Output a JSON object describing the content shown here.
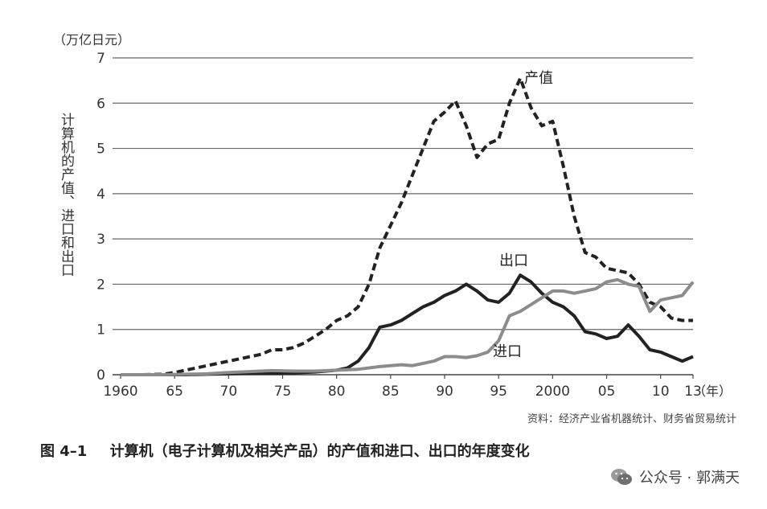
{
  "chart_data": {
    "type": "line",
    "unit_label": "（万亿日元）",
    "ylabel": "计算机的产值、进口和出口",
    "ylim": [
      0,
      7
    ],
    "y_ticks": [
      "0",
      "1",
      "2",
      "3",
      "4",
      "5",
      "6",
      "7"
    ],
    "xlim": [
      1960,
      2013
    ],
    "x_ticks": [
      {
        "year": 1960,
        "label": "1960"
      },
      {
        "year": 1965,
        "label": "65"
      },
      {
        "year": 1970,
        "label": "70"
      },
      {
        "year": 1975,
        "label": "75"
      },
      {
        "year": 1980,
        "label": "80"
      },
      {
        "year": 1985,
        "label": "85"
      },
      {
        "year": 1990,
        "label": "90"
      },
      {
        "year": 1995,
        "label": "95"
      },
      {
        "year": 2000,
        "label": "2000"
      },
      {
        "year": 2005,
        "label": "05"
      },
      {
        "year": 2010,
        "label": "10"
      },
      {
        "year": 2013,
        "label": "13"
      }
    ],
    "x_unit": "（年）",
    "grid": true,
    "series": [
      {
        "name": "产值",
        "style": "dashed",
        "color": "#222222",
        "points": [
          [
            1960,
            0
          ],
          [
            1962,
            0
          ],
          [
            1964,
            0.01
          ],
          [
            1965,
            0.05
          ],
          [
            1966,
            0.1
          ],
          [
            1967,
            0.15
          ],
          [
            1968,
            0.2
          ],
          [
            1969,
            0.25
          ],
          [
            1970,
            0.3
          ],
          [
            1971,
            0.35
          ],
          [
            1972,
            0.4
          ],
          [
            1973,
            0.45
          ],
          [
            1974,
            0.55
          ],
          [
            1975,
            0.55
          ],
          [
            1976,
            0.6
          ],
          [
            1977,
            0.7
          ],
          [
            1978,
            0.85
          ],
          [
            1979,
            1.0
          ],
          [
            1980,
            1.2
          ],
          [
            1981,
            1.3
          ],
          [
            1982,
            1.5
          ],
          [
            1983,
            2.0
          ],
          [
            1984,
            2.8
          ],
          [
            1985,
            3.3
          ],
          [
            1986,
            3.8
          ],
          [
            1987,
            4.4
          ],
          [
            1988,
            5.0
          ],
          [
            1989,
            5.6
          ],
          [
            1990,
            5.8
          ],
          [
            1991,
            6.05
          ],
          [
            1992,
            5.5
          ],
          [
            1993,
            4.8
          ],
          [
            1994,
            5.1
          ],
          [
            1995,
            5.2
          ],
          [
            1996,
            6.0
          ],
          [
            1997,
            6.55
          ],
          [
            1998,
            5.9
          ],
          [
            1999,
            5.5
          ],
          [
            2000,
            5.6
          ],
          [
            2001,
            4.6
          ],
          [
            2002,
            3.5
          ],
          [
            2003,
            2.7
          ],
          [
            2004,
            2.6
          ],
          [
            2005,
            2.35
          ],
          [
            2006,
            2.3
          ],
          [
            2007,
            2.25
          ],
          [
            2008,
            2.0
          ],
          [
            2009,
            1.6
          ],
          [
            2010,
            1.5
          ],
          [
            2011,
            1.25
          ],
          [
            2012,
            1.2
          ],
          [
            2013,
            1.2
          ]
        ]
      },
      {
        "name": "出口",
        "style": "solid",
        "color": "#222222",
        "points": [
          [
            1960,
            0
          ],
          [
            1962,
            0
          ],
          [
            1964,
            0
          ],
          [
            1966,
            0
          ],
          [
            1968,
            0.01
          ],
          [
            1970,
            0.02
          ],
          [
            1972,
            0.03
          ],
          [
            1974,
            0.03
          ],
          [
            1976,
            0.04
          ],
          [
            1978,
            0.06
          ],
          [
            1980,
            0.1
          ],
          [
            1981,
            0.15
          ],
          [
            1982,
            0.3
          ],
          [
            1983,
            0.6
          ],
          [
            1984,
            1.05
          ],
          [
            1985,
            1.1
          ],
          [
            1986,
            1.2
          ],
          [
            1987,
            1.35
          ],
          [
            1988,
            1.5
          ],
          [
            1989,
            1.6
          ],
          [
            1990,
            1.75
          ],
          [
            1991,
            1.85
          ],
          [
            1992,
            2.0
          ],
          [
            1993,
            1.85
          ],
          [
            1994,
            1.65
          ],
          [
            1995,
            1.6
          ],
          [
            1996,
            1.8
          ],
          [
            1997,
            2.2
          ],
          [
            1998,
            2.05
          ],
          [
            1999,
            1.8
          ],
          [
            2000,
            1.6
          ],
          [
            2001,
            1.5
          ],
          [
            2002,
            1.3
          ],
          [
            2003,
            0.95
          ],
          [
            2004,
            0.9
          ],
          [
            2005,
            0.8
          ],
          [
            2006,
            0.85
          ],
          [
            2007,
            1.1
          ],
          [
            2008,
            0.85
          ],
          [
            2009,
            0.55
          ],
          [
            2010,
            0.5
          ],
          [
            2011,
            0.4
          ],
          [
            2012,
            0.3
          ],
          [
            2013,
            0.4
          ]
        ]
      },
      {
        "name": "进口",
        "style": "solid",
        "color": "#8c8c8c",
        "points": [
          [
            1960,
            0
          ],
          [
            1962,
            0
          ],
          [
            1964,
            0
          ],
          [
            1966,
            0.01
          ],
          [
            1968,
            0.02
          ],
          [
            1970,
            0.05
          ],
          [
            1972,
            0.07
          ],
          [
            1974,
            0.09
          ],
          [
            1976,
            0.08
          ],
          [
            1978,
            0.08
          ],
          [
            1980,
            0.1
          ],
          [
            1982,
            0.12
          ],
          [
            1984,
            0.18
          ],
          [
            1985,
            0.2
          ],
          [
            1986,
            0.22
          ],
          [
            1987,
            0.2
          ],
          [
            1988,
            0.25
          ],
          [
            1989,
            0.3
          ],
          [
            1990,
            0.4
          ],
          [
            1991,
            0.4
          ],
          [
            1992,
            0.38
          ],
          [
            1993,
            0.42
          ],
          [
            1994,
            0.5
          ],
          [
            1995,
            0.75
          ],
          [
            1996,
            1.3
          ],
          [
            1997,
            1.4
          ],
          [
            1998,
            1.55
          ],
          [
            1999,
            1.7
          ],
          [
            2000,
            1.85
          ],
          [
            2001,
            1.85
          ],
          [
            2002,
            1.8
          ],
          [
            2003,
            1.85
          ],
          [
            2004,
            1.9
          ],
          [
            2005,
            2.05
          ],
          [
            2006,
            2.1
          ],
          [
            2007,
            2.0
          ],
          [
            2008,
            1.95
          ],
          [
            2009,
            1.4
          ],
          [
            2010,
            1.65
          ],
          [
            2011,
            1.7
          ],
          [
            2012,
            1.75
          ],
          [
            2013,
            2.05
          ]
        ]
      }
    ],
    "annotations": [
      {
        "text": "产值",
        "series": "产值"
      },
      {
        "text": "出口",
        "series": "出口"
      },
      {
        "text": "进口",
        "series": "进口"
      }
    ]
  },
  "source_note": "资料：经济产业省机器统计、财务省贸易统计",
  "caption": {
    "figure_number": "图 4–1",
    "title": "计算机（电子计算机及相关产品）的产值和进口、出口的年度变化"
  },
  "watermark": {
    "icon": "wechat-icon",
    "text": "公众号 · 郭满天"
  }
}
